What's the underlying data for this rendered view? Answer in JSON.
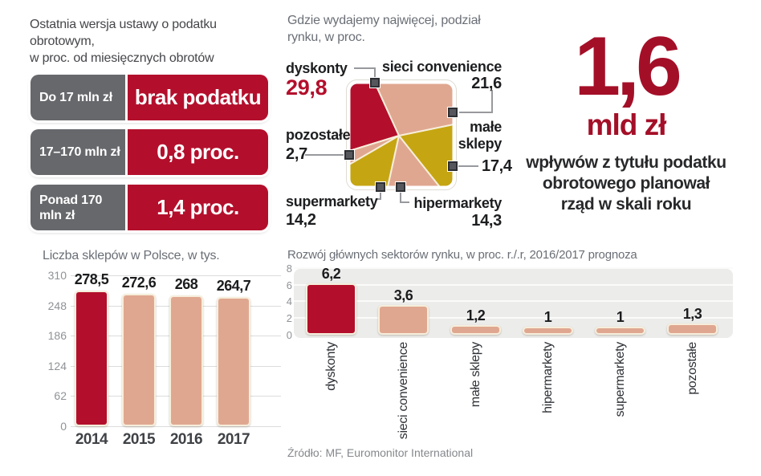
{
  "colors": {
    "red": "#b30f2c",
    "red_dark": "#a40f28",
    "salmon": "#e0a790",
    "gold": "#c6a513",
    "gray": "#67686c",
    "cream": "#f6eedb",
    "plot_bg": "#ececeb",
    "grid": "#dcdcdc",
    "marker": "#56575c",
    "marker_border": "#2e2f33",
    "connector": "#97999d"
  },
  "tax_table": {
    "title": "Ostatnia wersja ustawy o podatku\nobrotowym,\nw proc. od miesięcznych obrotów",
    "rows": [
      {
        "range": "Do 17 mln zł",
        "rate": "brak podatku"
      },
      {
        "range": "17–170 mln zł",
        "rate": "0,8 proc."
      },
      {
        "range": "Ponad 170\nmln zł",
        "rate": "1,4 proc."
      }
    ]
  },
  "market_share": {
    "title": "Gdzie wydajemy najwięcej, podział\nrynku, w proc.",
    "segments": [
      {
        "label": "dyskonty",
        "value": "29,8",
        "color": "red"
      },
      {
        "label": "sieci convenience",
        "value": "21,6",
        "color": "salmon"
      },
      {
        "label": "małe sklepy",
        "value": "17,4",
        "color": "gold"
      },
      {
        "label": "hipermarkety",
        "value": "14,3",
        "color": "salmon"
      },
      {
        "label": "supermarkety",
        "value": "14,2",
        "color": "gold"
      },
      {
        "label": "pozostałe",
        "value": "2,7",
        "color": "salmon"
      }
    ]
  },
  "revenue_callout": {
    "amount": "1,6",
    "unit": "mld zł",
    "description": "wpływów z tytułu podatku\nobrotowego planował\nrząd w skali roku"
  },
  "chart_data": [
    {
      "type": "bar",
      "title": "Liczba sklepów w Polsce, w tys.",
      "categories": [
        "2014",
        "2015",
        "2016",
        "2017"
      ],
      "values": [
        278.5,
        272.6,
        268,
        264.7
      ],
      "value_labels": [
        "278,5",
        "272,6",
        "268",
        "264,7"
      ],
      "ylim": [
        0,
        310
      ],
      "yticks": [
        0,
        62,
        124,
        186,
        248,
        310
      ],
      "bar_colors": [
        "red",
        "salmon",
        "salmon",
        "salmon"
      ],
      "grid": true,
      "legend": false
    },
    {
      "type": "bar",
      "title": "Rozwój głównych sektorów rynku, w proc. r./.r, 2016/2017 prognoza",
      "categories": [
        "dyskonty",
        "sieci convenience",
        "małe sklepy",
        "hipermarkety",
        "supermarkety",
        "pozostałe"
      ],
      "values": [
        6.2,
        3.6,
        1.2,
        1,
        1,
        1.3
      ],
      "value_labels": [
        "6,2",
        "3,6",
        "1,2",
        "1",
        "1",
        "1,3"
      ],
      "ylim": [
        0,
        8
      ],
      "yticks": [
        0,
        2,
        4,
        6,
        8
      ],
      "bar_colors": [
        "red",
        "salmon",
        "salmon",
        "salmon",
        "salmon",
        "salmon"
      ],
      "grid": true,
      "legend": false
    }
  ],
  "source": "Źródło: MF, Euromonitor International"
}
